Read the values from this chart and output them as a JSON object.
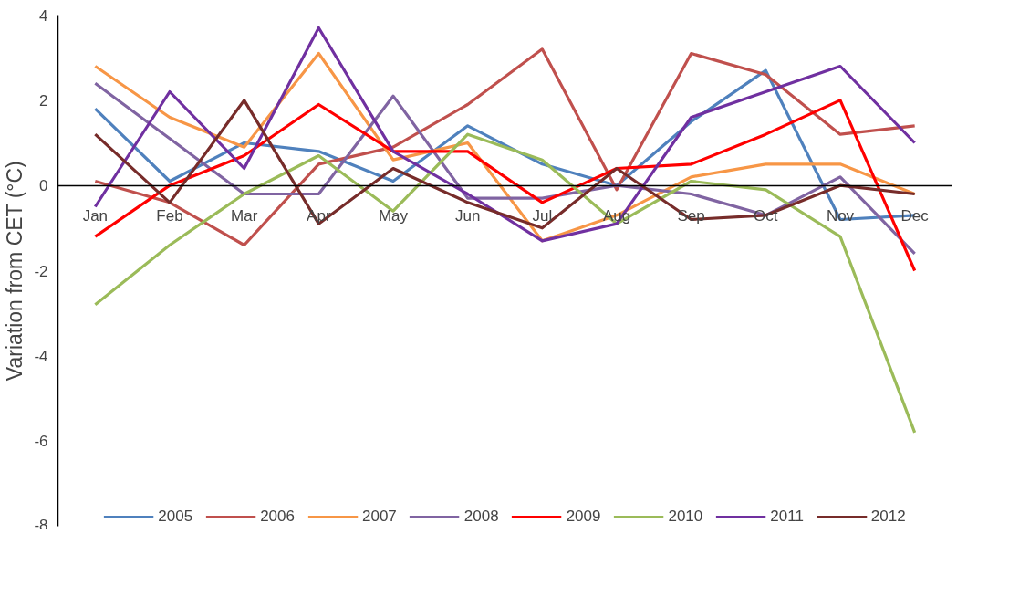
{
  "chart_data": {
    "type": "line",
    "ylabel": "Variation from CET (°C)",
    "categories": [
      "Jan",
      "Feb",
      "Mar",
      "Apr",
      "May",
      "Jun",
      "Jul",
      "Aug",
      "Sep",
      "Oct",
      "Nov",
      "Dec"
    ],
    "ylim": [
      -8,
      4
    ],
    "yticks": [
      -8,
      -6,
      -4,
      -2,
      0,
      2,
      4
    ],
    "legend": "bottom",
    "series": [
      {
        "name": "2005",
        "color": "#4f81bd",
        "values": [
          1.8,
          0.1,
          1.0,
          0.8,
          0.1,
          1.4,
          0.5,
          0.0,
          1.5,
          2.7,
          -0.8,
          -0.7
        ]
      },
      {
        "name": "2006",
        "color": "#c0504d",
        "values": [
          0.1,
          -0.4,
          -1.4,
          0.5,
          0.9,
          1.9,
          3.2,
          -0.1,
          3.1,
          2.6,
          1.2,
          1.4
        ]
      },
      {
        "name": "2007",
        "color": "#f79646",
        "values": [
          2.8,
          1.6,
          0.9,
          3.1,
          0.6,
          1.0,
          -1.3,
          -0.7,
          0.2,
          0.5,
          0.5,
          -0.2
        ]
      },
      {
        "name": "2008",
        "color": "#8064a2",
        "values": [
          2.4,
          1.1,
          -0.2,
          -0.2,
          2.1,
          -0.3,
          -0.3,
          0.0,
          -0.2,
          -0.7,
          0.2,
          -1.6
        ]
      },
      {
        "name": "2009",
        "color": "#ff0000",
        "values": [
          -1.2,
          0.0,
          0.7,
          1.9,
          0.8,
          0.8,
          -0.4,
          0.4,
          0.5,
          1.2,
          2.0,
          -2.0
        ]
      },
      {
        "name": "2010",
        "color": "#9bbb59",
        "values": [
          -2.8,
          -1.4,
          -0.2,
          0.7,
          -0.6,
          1.2,
          0.6,
          -0.9,
          0.1,
          -0.1,
          -1.2,
          -5.8
        ]
      },
      {
        "name": "2011",
        "color": "#7030a0",
        "values": [
          -0.5,
          2.2,
          0.4,
          3.7,
          0.8,
          -0.2,
          -1.3,
          -0.9,
          1.6,
          2.2,
          2.8,
          1.0
        ]
      },
      {
        "name": "2012",
        "color": "#772c2a",
        "values": [
          1.2,
          -0.4,
          2.0,
          -0.9,
          0.4,
          -0.4,
          -1.0,
          0.4,
          -0.8,
          -0.7,
          0.0,
          -0.2
        ]
      }
    ]
  }
}
